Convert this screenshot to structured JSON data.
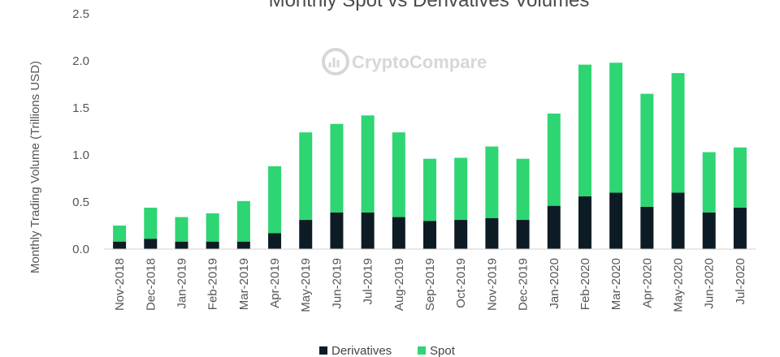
{
  "watermark": "CryptoCompare",
  "chart_data": {
    "type": "bar",
    "stacked": true,
    "title": "Monthly Spot vs Derivatives Volumes",
    "xlabel": "",
    "ylabel": "Monthly Trading Volume (Trillions USD)",
    "ylim": [
      0,
      2.5
    ],
    "yticks": [
      "0.0",
      "0.5",
      "1.0",
      "1.5",
      "2.0",
      "2.5"
    ],
    "grid": false,
    "legend_position": "bottom",
    "categories": [
      "Nov-2018",
      "Dec-2018",
      "Jan-2019",
      "Feb-2019",
      "Mar-2019",
      "Apr-2019",
      "May-2019",
      "Jun-2019",
      "Jul-2019",
      "Aug-2019",
      "Sep-2019",
      "Oct-2019",
      "Nov-2019",
      "Dec-2019",
      "Jan-2020",
      "Feb-2020",
      "Mar-2020",
      "Apr-2020",
      "May-2020",
      "Jun-2020",
      "Jul-2020"
    ],
    "series": [
      {
        "name": "Derivatives",
        "color": "#0d1b24",
        "values": [
          0.08,
          0.11,
          0.08,
          0.08,
          0.08,
          0.17,
          0.31,
          0.39,
          0.39,
          0.34,
          0.3,
          0.31,
          0.33,
          0.31,
          0.46,
          0.56,
          0.6,
          0.45,
          0.6,
          0.39,
          0.44
        ]
      },
      {
        "name": "Spot",
        "color": "#2ed573",
        "values": [
          0.17,
          0.33,
          0.26,
          0.3,
          0.43,
          0.71,
          0.93,
          0.94,
          1.03,
          0.9,
          0.66,
          0.66,
          0.76,
          0.65,
          0.98,
          1.4,
          1.38,
          1.2,
          1.27,
          0.64,
          0.64
        ]
      }
    ]
  }
}
